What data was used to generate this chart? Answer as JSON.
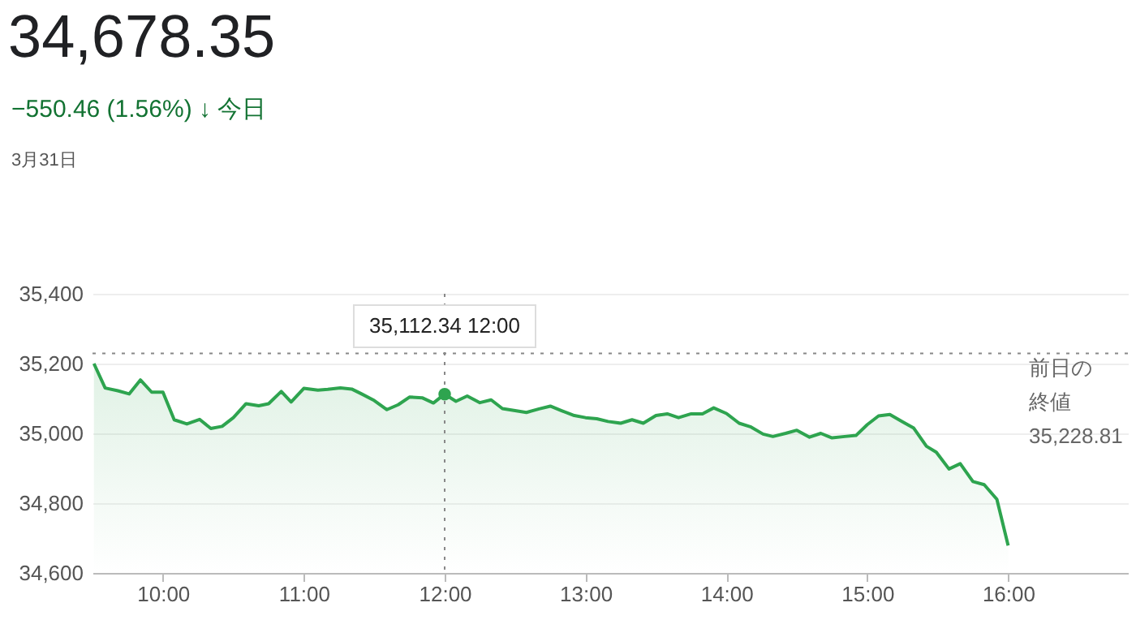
{
  "chart_data": {
    "type": "area",
    "title": "34,678.35",
    "subtitle": "−550.46 (1.56%) ↓ 今日",
    "annotations": [
      "3月31日",
      {
        "text": "35,112.34 12:00",
        "x": 12,
        "y": 35112.34
      }
    ],
    "x": [
      9.51,
      9.59,
      9.68,
      9.76,
      9.84,
      9.92,
      10.0,
      10.08,
      10.17,
      10.26,
      10.34,
      10.42,
      10.5,
      10.59,
      10.68,
      10.75,
      10.84,
      10.91,
      11.0,
      11.1,
      11.17,
      11.26,
      11.34,
      11.41,
      11.5,
      11.59,
      11.67,
      11.75,
      11.84,
      11.92,
      12.0,
      12.08,
      12.16,
      12.25,
      12.33,
      12.41,
      12.5,
      12.58,
      12.67,
      12.75,
      12.83,
      12.92,
      13.0,
      13.08,
      13.16,
      13.25,
      13.33,
      13.41,
      13.5,
      13.58,
      13.66,
      13.75,
      13.83,
      13.91,
      14.0,
      14.09,
      14.17,
      14.26,
      14.33,
      14.42,
      14.5,
      14.59,
      14.67,
      14.75,
      14.84,
      14.92,
      15.0,
      15.08,
      15.16,
      15.25,
      15.33,
      15.42,
      15.49,
      15.58,
      15.66,
      15.75,
      15.83,
      15.92,
      16.0
    ],
    "series": [
      {
        "color": "#2ea44f",
        "values": [
          35200,
          35130,
          35122,
          35113,
          35153,
          35118,
          35118,
          35039,
          35027,
          35040,
          35014,
          35020,
          35045,
          35085,
          35079,
          35085,
          35120,
          35090,
          35129,
          35124,
          35126,
          35130,
          35127,
          35113,
          35094,
          35068,
          35082,
          35104,
          35102,
          35087,
          35112.34,
          35092,
          35107,
          35088,
          35096,
          35071,
          35065,
          35060,
          35070,
          35078,
          35065,
          35051,
          35045,
          35042,
          35034,
          35029,
          35039,
          35029,
          35051,
          35056,
          35045,
          35056,
          35056,
          35073,
          35057,
          35029,
          35019,
          34998,
          34991,
          35000,
          35009,
          34989,
          35000,
          34987,
          34991,
          34994,
          35025,
          35050,
          35054,
          35033,
          35015,
          34963,
          34946,
          34898,
          34913,
          34862,
          34853,
          34811,
          34678.35
        ]
      }
    ],
    "xlim": [
      9.5,
      16.85
    ],
    "xticks": [
      {
        "value": 10,
        "label": "10:00"
      },
      {
        "value": 11,
        "label": "11:00"
      },
      {
        "value": 12,
        "label": "12:00"
      },
      {
        "value": 13,
        "label": "13:00"
      },
      {
        "value": 14,
        "label": "14:00"
      },
      {
        "value": 15,
        "label": "15:00"
      },
      {
        "value": 16,
        "label": "16:00"
      }
    ],
    "ylim": [
      34600,
      35400
    ],
    "yticks": [
      {
        "value": 34600,
        "label": "34,600"
      },
      {
        "value": 34800,
        "label": "34,800"
      },
      {
        "value": 35000,
        "label": "35,000"
      },
      {
        "value": 35200,
        "label": "35,200"
      },
      {
        "value": 35400,
        "label": "35,400"
      }
    ],
    "ref_lines": [
      {
        "axis": "y",
        "value": 35228.81,
        "label": "前日の終値\n35,228.81",
        "line_style": "dotted",
        "color": "#888888"
      },
      {
        "axis": "x",
        "value": 12,
        "line_style": "dotted",
        "color": "#888888"
      }
    ],
    "grid": "y",
    "marker": "none",
    "line_style": "solid"
  }
}
